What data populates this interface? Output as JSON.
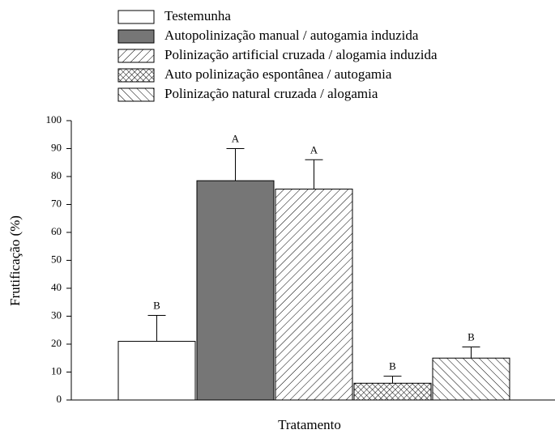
{
  "chart_data": {
    "type": "bar",
    "ylabel": "Frutificação (%)",
    "xlabel": "Tratamento",
    "ylim": [
      0,
      100
    ],
    "yticks": [
      0,
      10,
      20,
      30,
      40,
      50,
      60,
      70,
      80,
      90,
      100
    ],
    "series": [
      {
        "name": "Testemunha",
        "fill": "white",
        "values": [
          21
        ],
        "errors": [
          9.3
        ],
        "letters": [
          "B"
        ]
      },
      {
        "name": "Autopolinização manual / autogamia induzida",
        "fill": "#767676",
        "values": [
          78.5
        ],
        "errors": [
          11.5
        ],
        "letters": [
          "A"
        ]
      },
      {
        "name": "Polinização artificial cruzada / alogamia induzida",
        "fill": "hatch-forward",
        "values": [
          75.5
        ],
        "errors": [
          10.5
        ],
        "letters": [
          "A"
        ]
      },
      {
        "name": "Auto polinização espontânea / autogamia",
        "fill": "crosshatch",
        "values": [
          6
        ],
        "errors": [
          2.5
        ],
        "letters": [
          "B"
        ]
      },
      {
        "name": "Polinização natural cruzada / alogamia",
        "fill": "hatch-back",
        "values": [
          15
        ],
        "errors": [
          4
        ],
        "letters": [
          "B"
        ]
      }
    ]
  }
}
